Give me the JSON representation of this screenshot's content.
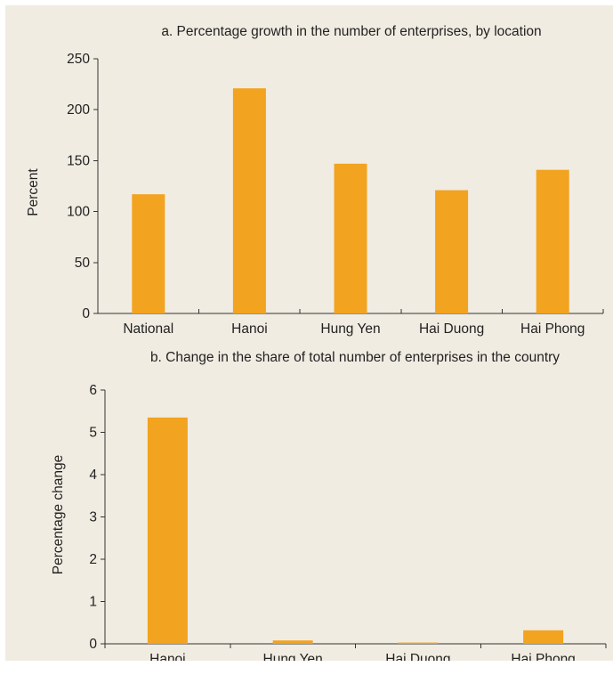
{
  "chart_data": [
    {
      "type": "bar",
      "title": "a. Percentage growth in the number of enterprises, by location",
      "categories": [
        "National",
        "Hanoi",
        "Hung Yen",
        "Hai Duong",
        "Hai Phong"
      ],
      "values": [
        117,
        221,
        147,
        121,
        141
      ],
      "ylabel": "Percent",
      "xlabel": "",
      "ylim": [
        0,
        250
      ],
      "yticks": [
        0,
        50,
        100,
        150,
        200,
        250
      ],
      "grid": false,
      "bar_color": "#f2a31f"
    },
    {
      "type": "bar",
      "title": "b. Change in the share of total number of enterprises in the country",
      "categories": [
        "Hanoi",
        "Hung Yen",
        "Hai Duong",
        "Hai Phong"
      ],
      "values": [
        5.35,
        0.08,
        0.03,
        0.32
      ],
      "ylabel": "Percentage change",
      "xlabel": "",
      "ylim": [
        0,
        6
      ],
      "yticks": [
        0,
        1,
        2,
        3,
        4,
        5,
        6
      ],
      "grid": false,
      "bar_color": "#f2a31f"
    }
  ]
}
